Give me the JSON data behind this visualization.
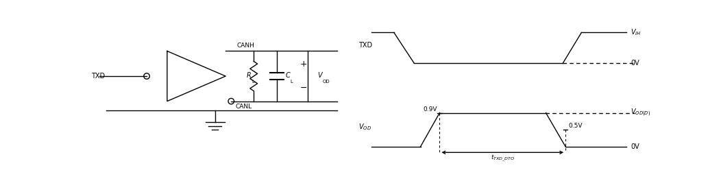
{
  "bg_color": "#ffffff",
  "line_color": "#000000",
  "fig_width": 10.52,
  "fig_height": 2.61,
  "dpi": 100,
  "circuit": {
    "txd_label": "TXD",
    "canh_label": "CANH",
    "canl_label": "CANL",
    "rl_label": "R",
    "rl_sub": "L",
    "cl_label": "C",
    "cl_sub": "L",
    "vod_label": "V",
    "vod_sub": "OD",
    "plus_label": "+",
    "minus_label": "−"
  },
  "timing": {
    "txd_label": "TXD",
    "vih_label": "$V_{IH}$",
    "zero_v1": "0V",
    "zero_v2": "0V",
    "vod_d_label": "$V_{OD(D)}$",
    "vod_label": "$V_{OD}$",
    "v09_label": "0.9V",
    "v05_label": "0.5V",
    "tdto_label": "$t_{TXD\\_DTO}$"
  }
}
